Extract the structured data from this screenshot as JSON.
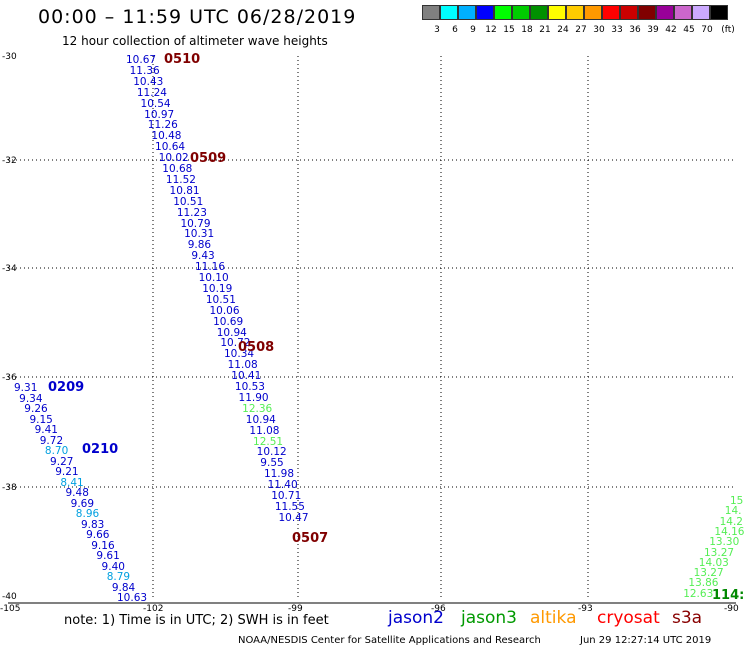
{
  "header": {
    "title": "00:00 – 11:59 UTC 06/28/2019",
    "subtitle": "12 hour collection of altimeter wave heights"
  },
  "legend": {
    "unit": "(ft)",
    "bins": [
      {
        "label": "3",
        "color": "#808080"
      },
      {
        "label": "6",
        "color": "#00ffff"
      },
      {
        "label": "9",
        "color": "#00b0ff"
      },
      {
        "label": "12",
        "color": "#0000ff"
      },
      {
        "label": "15",
        "color": "#00ff00"
      },
      {
        "label": "18",
        "color": "#00cc00"
      },
      {
        "label": "21",
        "color": "#009000"
      },
      {
        "label": "24",
        "color": "#ffff00"
      },
      {
        "label": "27",
        "color": "#ffcc00"
      },
      {
        "label": "30",
        "color": "#ff9900"
      },
      {
        "label": "33",
        "color": "#ff0000"
      },
      {
        "label": "36",
        "color": "#cc0000"
      },
      {
        "label": "39",
        "color": "#800000"
      },
      {
        "label": "42",
        "color": "#990099"
      },
      {
        "label": "45",
        "color": "#cc66cc"
      },
      {
        "label": "70",
        "color": "#ccaaff"
      },
      {
        "label": "",
        "color": "#000000"
      }
    ]
  },
  "map": {
    "lat_labels": [
      "-30",
      "-32",
      "-34",
      "-36",
      "-38",
      "-40"
    ],
    "lon_labels": [
      "-105",
      "-102",
      "-99",
      "-96",
      "-93",
      "-90"
    ]
  },
  "tracks": [
    {
      "id": "track-0510-0507",
      "points": [
        {
          "v": "10.67",
          "c": "#0000cc"
        },
        {
          "v": "11.36",
          "c": "#0000cc"
        },
        {
          "v": "10.43",
          "c": "#0000cc"
        },
        {
          "v": "11.24",
          "c": "#0000cc"
        },
        {
          "v": "10.54",
          "c": "#0000cc"
        },
        {
          "v": "10.97",
          "c": "#0000cc"
        },
        {
          "v": "11.26",
          "c": "#0000cc"
        },
        {
          "v": "10.48",
          "c": "#0000cc"
        },
        {
          "v": "10.64",
          "c": "#0000cc"
        },
        {
          "v": "10.02",
          "c": "#0000cc"
        },
        {
          "v": "10.68",
          "c": "#0000cc"
        },
        {
          "v": "11.52",
          "c": "#0000cc"
        },
        {
          "v": "10.81",
          "c": "#0000cc"
        },
        {
          "v": "10.51",
          "c": "#0000cc"
        },
        {
          "v": "11.23",
          "c": "#0000cc"
        },
        {
          "v": "10.79",
          "c": "#0000cc"
        },
        {
          "v": "10.31",
          "c": "#0000cc"
        },
        {
          "v": "9.86",
          "c": "#0000cc"
        },
        {
          "v": "9.43",
          "c": "#0000cc"
        },
        {
          "v": "11.16",
          "c": "#0000cc"
        },
        {
          "v": "10.10",
          "c": "#0000cc"
        },
        {
          "v": "10.19",
          "c": "#0000cc"
        },
        {
          "v": "10.51",
          "c": "#0000cc"
        },
        {
          "v": "10.06",
          "c": "#0000cc"
        },
        {
          "v": "10.69",
          "c": "#0000cc"
        },
        {
          "v": "10.94",
          "c": "#0000cc"
        },
        {
          "v": "10.72",
          "c": "#0000cc"
        },
        {
          "v": "10.34",
          "c": "#0000cc"
        },
        {
          "v": "11.08",
          "c": "#0000cc"
        },
        {
          "v": "10.41",
          "c": "#0000cc"
        },
        {
          "v": "10.53",
          "c": "#0000cc"
        },
        {
          "v": "11.90",
          "c": "#0000cc"
        },
        {
          "v": "12.36",
          "c": "#55ee55"
        },
        {
          "v": "10.94",
          "c": "#0000cc"
        },
        {
          "v": "11.08",
          "c": "#0000cc"
        },
        {
          "v": "12.51",
          "c": "#55ee55"
        },
        {
          "v": "10.12",
          "c": "#0000cc"
        },
        {
          "v": "9.55",
          "c": "#0000cc"
        },
        {
          "v": "11.98",
          "c": "#0000cc"
        },
        {
          "v": "11.40",
          "c": "#0000cc"
        },
        {
          "v": "10.71",
          "c": "#0000cc"
        },
        {
          "v": "11.55",
          "c": "#0000cc"
        },
        {
          "v": "10.47",
          "c": "#0000cc"
        }
      ]
    },
    {
      "id": "track-0209-0210",
      "points": [
        {
          "v": "9.31",
          "c": "#0000cc"
        },
        {
          "v": "9.34",
          "c": "#0000cc"
        },
        {
          "v": "9.26",
          "c": "#0000cc"
        },
        {
          "v": "9.15",
          "c": "#0000cc"
        },
        {
          "v": "9.41",
          "c": "#0000cc"
        },
        {
          "v": "9.72",
          "c": "#0000cc"
        },
        {
          "v": "8.70",
          "c": "#00a0e0"
        },
        {
          "v": "9.27",
          "c": "#0000cc"
        },
        {
          "v": "9.21",
          "c": "#0000cc"
        },
        {
          "v": "8.41",
          "c": "#00a0e0"
        },
        {
          "v": "9.48",
          "c": "#0000cc"
        },
        {
          "v": "9.69",
          "c": "#0000cc"
        },
        {
          "v": "8.96",
          "c": "#00a0e0"
        },
        {
          "v": "9.83",
          "c": "#0000cc"
        },
        {
          "v": "9.66",
          "c": "#0000cc"
        },
        {
          "v": "9.16",
          "c": "#0000cc"
        },
        {
          "v": "9.61",
          "c": "#0000cc"
        },
        {
          "v": "9.40",
          "c": "#0000cc"
        },
        {
          "v": "8.79",
          "c": "#00a0e0"
        },
        {
          "v": "9.84",
          "c": "#0000cc"
        },
        {
          "v": "10.63",
          "c": "#0000cc"
        }
      ]
    },
    {
      "id": "track-1143",
      "points": [
        {
          "v": "15",
          "c": "#55ee55"
        },
        {
          "v": "14.",
          "c": "#55ee55"
        },
        {
          "v": "14.2",
          "c": "#55ee55"
        },
        {
          "v": "14.16",
          "c": "#55ee55"
        },
        {
          "v": "13.30",
          "c": "#55ee55"
        },
        {
          "v": "13.27",
          "c": "#55ee55"
        },
        {
          "v": "14.03",
          "c": "#55ee55"
        },
        {
          "v": "13.27",
          "c": "#55ee55"
        },
        {
          "v": "13.86",
          "c": "#55ee55"
        },
        {
          "v": "12.63",
          "c": "#55ee55"
        }
      ]
    }
  ],
  "time_labels": [
    {
      "text": "0510",
      "color": "#800000"
    },
    {
      "text": "0509",
      "color": "#800000"
    },
    {
      "text": "0508",
      "color": "#800000"
    },
    {
      "text": "0507",
      "color": "#800000"
    },
    {
      "text": "0209",
      "color": "#0000cc"
    },
    {
      "text": "0210",
      "color": "#0000cc"
    },
    {
      "text": "114:",
      "color": "#008800"
    }
  ],
  "footer": {
    "note": "note:  1) Time is in UTC;  2) SWH is in feet",
    "satellites": [
      {
        "name": "jason2",
        "color": "#0000cc"
      },
      {
        "name": "jason3",
        "color": "#009900"
      },
      {
        "name": "altika",
        "color": "#ff9900"
      },
      {
        "name": "cryosat",
        "color": "#ff0000"
      },
      {
        "name": "s3a",
        "color": "#880000"
      }
    ],
    "credit": "NOAA/NESDIS Center for Satellite Applications and Research",
    "timestamp": "Jun 29 12:27:14 UTC 2019"
  }
}
